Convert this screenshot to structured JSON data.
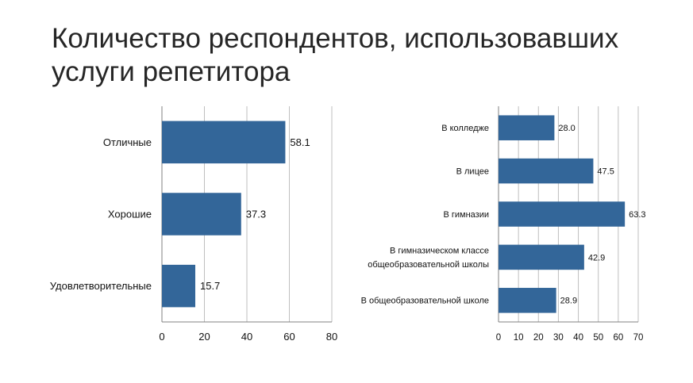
{
  "title": "Количество респондентов, использовавших услуги репетитора",
  "title_lines": [
    "Количество респондентов, использовавших",
    "услуги репетитора"
  ],
  "colors": {
    "bar": "#336699",
    "grid": "#bfbfbf",
    "axis": "#808080",
    "text": "#111111"
  },
  "chart_data": [
    {
      "type": "bar",
      "orientation": "horizontal",
      "categories": [
        "Отличные",
        "Хорошие",
        "Удовлетворительные"
      ],
      "values": [
        58.1,
        37.3,
        15.7
      ],
      "value_labels": [
        "58.1",
        "37.3",
        "15.7"
      ],
      "xticks": [
        "0",
        "20",
        "40",
        "60",
        "80"
      ],
      "xlim": [
        0,
        80
      ],
      "grid": true,
      "legend": "none",
      "title": "",
      "xlabel": "",
      "ylabel": ""
    },
    {
      "type": "bar",
      "orientation": "horizontal",
      "categories": [
        [
          "В колледже"
        ],
        [
          "В лицее"
        ],
        [
          "В гимназии"
        ],
        [
          "В гимназическом классе",
          "общеобразовательной школы"
        ],
        [
          "В общеобразовательной школе"
        ]
      ],
      "values": [
        28.0,
        47.5,
        63.3,
        42.9,
        28.9
      ],
      "value_labels": [
        "28.0",
        "47.5",
        "63.3",
        "42.9",
        "28.9"
      ],
      "xticks": [
        "0",
        "10",
        "20",
        "30",
        "40",
        "50",
        "60",
        "70"
      ],
      "xlim": [
        0,
        70
      ],
      "grid": true,
      "legend": "none",
      "title": "",
      "xlabel": "",
      "ylabel": ""
    }
  ]
}
